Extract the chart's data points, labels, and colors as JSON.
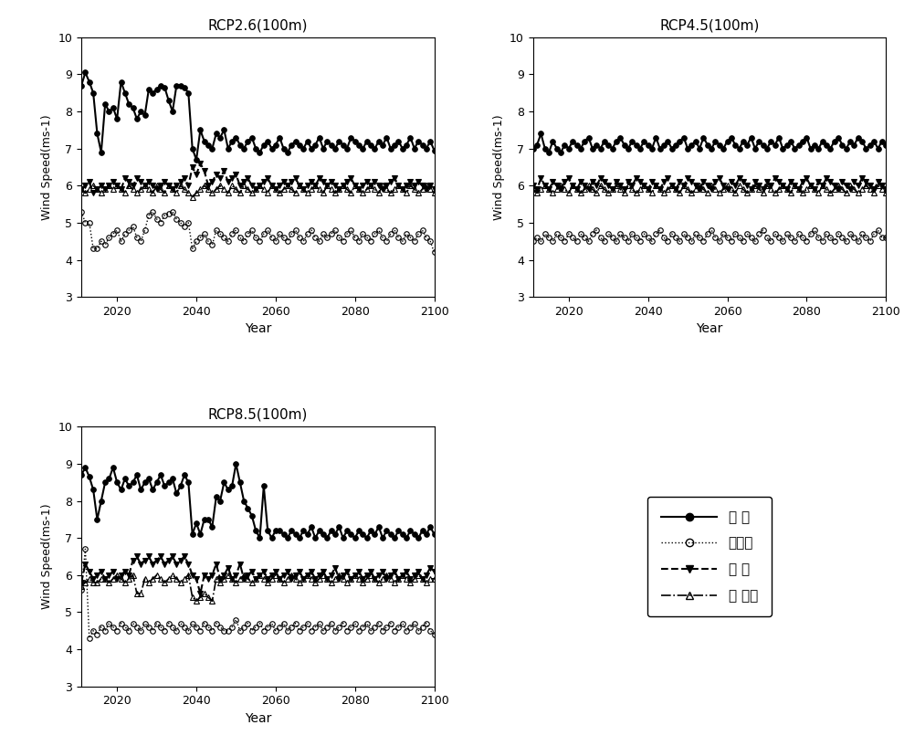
{
  "years": [
    2011,
    2012,
    2013,
    2014,
    2015,
    2016,
    2017,
    2018,
    2019,
    2020,
    2021,
    2022,
    2023,
    2024,
    2025,
    2026,
    2027,
    2028,
    2029,
    2030,
    2031,
    2032,
    2033,
    2034,
    2035,
    2036,
    2037,
    2038,
    2039,
    2040,
    2041,
    2042,
    2043,
    2044,
    2045,
    2046,
    2047,
    2048,
    2049,
    2050,
    2051,
    2052,
    2053,
    2054,
    2055,
    2056,
    2057,
    2058,
    2059,
    2060,
    2061,
    2062,
    2063,
    2064,
    2065,
    2066,
    2067,
    2068,
    2069,
    2070,
    2071,
    2072,
    2073,
    2074,
    2075,
    2076,
    2077,
    2078,
    2079,
    2080,
    2081,
    2082,
    2083,
    2084,
    2085,
    2086,
    2087,
    2088,
    2089,
    2090,
    2091,
    2092,
    2093,
    2094,
    2095,
    2096,
    2097,
    2098,
    2099,
    2100
  ],
  "subplot_titles": [
    "RCP2.6(100m)",
    "RCP4.5(100m)",
    "RCP8.5(100m)"
  ],
  "ylabel": "Wind Speed(ms-1)",
  "xlabel": "Year",
  "ylim": [
    3,
    10
  ],
  "yticks": [
    3,
    4,
    5,
    6,
    7,
    8,
    9,
    10
  ],
  "xticks": [
    2020,
    2040,
    2060,
    2080,
    2100
  ],
  "legend_labels": [
    "한 경",
    "대관령",
    "영 양",
    "서 남해"
  ],
  "series_styles": [
    {
      "color": "#000000",
      "linestyle": "-",
      "marker": "o",
      "markersize": 4,
      "linewidth": 1.5,
      "fillstyle": "full",
      "markerfacecolor": "#000000"
    },
    {
      "color": "#000000",
      "linestyle": ":",
      "marker": "o",
      "markersize": 4,
      "linewidth": 1.0,
      "fillstyle": "none",
      "markerfacecolor": "none"
    },
    {
      "color": "#000000",
      "linestyle": "--",
      "marker": "v",
      "markersize": 4,
      "linewidth": 1.5,
      "fillstyle": "full",
      "markerfacecolor": "#000000"
    },
    {
      "color": "#000000",
      "linestyle": "-.",
      "marker": "^",
      "markersize": 4,
      "linewidth": 1.2,
      "fillstyle": "none",
      "markerfacecolor": "none"
    }
  ],
  "rcp26": {
    "hk": [
      8.7,
      9.05,
      8.8,
      8.5,
      7.4,
      6.9,
      8.2,
      8.0,
      8.1,
      7.8,
      8.8,
      8.5,
      8.2,
      8.1,
      7.8,
      8.0,
      7.9,
      8.6,
      8.5,
      8.6,
      8.7,
      8.65,
      8.3,
      8.0,
      8.7,
      8.7,
      8.65,
      8.5,
      7.0,
      6.7,
      7.5,
      7.2,
      7.1,
      7.0,
      7.4,
      7.3,
      7.5,
      7.0,
      7.2,
      7.3,
      7.1,
      7.0,
      7.2,
      7.3,
      7.0,
      6.9,
      7.1,
      7.2,
      7.0,
      7.1,
      7.3,
      7.0,
      6.9,
      7.1,
      7.2,
      7.1,
      7.0,
      7.2,
      7.0,
      7.1,
      7.3,
      7.0,
      7.2,
      7.1,
      7.0,
      7.2,
      7.1,
      7.0,
      7.3,
      7.2,
      7.1,
      7.0,
      7.2,
      7.1,
      7.0,
      7.2,
      7.1,
      7.3,
      7.0,
      7.1,
      7.2,
      7.0,
      7.1,
      7.3,
      7.0,
      7.2,
      7.1,
      7.0,
      7.2,
      6.95
    ],
    "dg": [
      5.3,
      5.0,
      5.0,
      4.3,
      4.3,
      4.5,
      4.4,
      4.6,
      4.7,
      4.8,
      4.5,
      4.7,
      4.8,
      4.9,
      4.6,
      4.5,
      4.8,
      5.2,
      5.3,
      5.1,
      5.0,
      5.2,
      5.25,
      5.3,
      5.1,
      5.0,
      4.9,
      5.0,
      4.3,
      4.5,
      4.6,
      4.7,
      4.5,
      4.4,
      4.8,
      4.7,
      4.6,
      4.5,
      4.7,
      4.8,
      4.6,
      4.5,
      4.7,
      4.8,
      4.6,
      4.5,
      4.7,
      4.8,
      4.6,
      4.5,
      4.7,
      4.6,
      4.5,
      4.7,
      4.8,
      4.6,
      4.5,
      4.7,
      4.8,
      4.6,
      4.5,
      4.7,
      4.6,
      4.7,
      4.8,
      4.6,
      4.5,
      4.7,
      4.8,
      4.6,
      4.5,
      4.7,
      4.6,
      4.5,
      4.7,
      4.8,
      4.6,
      4.5,
      4.7,
      4.8,
      4.6,
      4.5,
      4.7,
      4.6,
      4.5,
      4.7,
      4.8,
      4.6,
      4.5,
      4.2
    ],
    "yy": [
      5.9,
      6.0,
      6.1,
      5.8,
      5.9,
      6.0,
      5.9,
      6.0,
      6.1,
      6.0,
      5.9,
      6.2,
      6.1,
      6.0,
      6.2,
      6.1,
      6.0,
      6.1,
      6.0,
      5.9,
      6.0,
      6.1,
      6.0,
      5.9,
      6.0,
      6.1,
      6.2,
      6.0,
      6.5,
      6.3,
      6.6,
      6.4,
      6.0,
      6.1,
      6.3,
      6.2,
      6.4,
      6.1,
      6.2,
      6.3,
      6.0,
      6.1,
      6.2,
      6.0,
      5.9,
      6.0,
      6.1,
      6.2,
      6.0,
      5.9,
      6.0,
      6.1,
      6.0,
      6.1,
      6.2,
      6.0,
      5.9,
      6.0,
      6.1,
      6.0,
      6.2,
      6.1,
      6.0,
      6.1,
      6.0,
      5.9,
      6.0,
      6.1,
      6.2,
      6.0,
      5.9,
      6.0,
      6.1,
      6.0,
      6.1,
      6.0,
      5.9,
      6.0,
      6.1,
      6.2,
      6.0,
      5.9,
      6.0,
      6.1,
      6.0,
      6.1,
      6.0,
      5.9,
      6.0,
      5.9
    ],
    "sh": [
      5.9,
      5.8,
      5.9,
      6.0,
      5.9,
      5.8,
      5.9,
      6.0,
      5.9,
      6.0,
      5.9,
      5.8,
      6.0,
      5.9,
      5.8,
      5.9,
      6.0,
      5.9,
      5.8,
      6.0,
      5.9,
      5.8,
      6.0,
      5.9,
      5.8,
      6.0,
      5.9,
      5.8,
      5.7,
      5.8,
      5.9,
      6.0,
      5.9,
      5.8,
      5.9,
      6.0,
      5.9,
      5.8,
      6.0,
      5.9,
      5.8,
      6.0,
      5.9,
      5.8,
      5.9,
      6.0,
      5.9,
      5.8,
      6.0,
      5.9,
      5.8,
      5.9,
      6.0,
      5.9,
      5.8,
      6.0,
      5.9,
      5.8,
      5.9,
      6.0,
      5.9,
      5.8,
      6.0,
      5.9,
      5.8,
      5.9,
      6.0,
      5.9,
      5.8,
      6.0,
      5.9,
      5.8,
      5.9,
      6.0,
      5.9,
      5.8,
      6.0,
      5.9,
      5.8,
      5.9,
      6.0,
      5.9,
      5.8,
      6.0,
      5.9,
      5.8,
      5.9,
      6.0,
      5.9,
      5.8
    ]
  },
  "rcp45": {
    "hk": [
      7.0,
      7.1,
      7.4,
      7.0,
      6.9,
      7.2,
      7.0,
      6.9,
      7.1,
      7.0,
      7.2,
      7.1,
      7.0,
      7.2,
      7.3,
      7.0,
      7.1,
      7.0,
      7.2,
      7.1,
      7.0,
      7.2,
      7.3,
      7.1,
      7.0,
      7.2,
      7.1,
      7.0,
      7.2,
      7.1,
      7.0,
      7.3,
      7.0,
      7.1,
      7.2,
      7.0,
      7.1,
      7.2,
      7.3,
      7.0,
      7.1,
      7.2,
      7.0,
      7.3,
      7.1,
      7.0,
      7.2,
      7.1,
      7.0,
      7.2,
      7.3,
      7.1,
      7.0,
      7.2,
      7.1,
      7.3,
      7.0,
      7.2,
      7.1,
      7.0,
      7.2,
      7.1,
      7.3,
      7.0,
      7.1,
      7.2,
      7.0,
      7.1,
      7.2,
      7.3,
      7.0,
      7.1,
      7.0,
      7.2,
      7.1,
      7.0,
      7.2,
      7.3,
      7.1,
      7.0,
      7.2,
      7.1,
      7.3,
      7.2,
      7.0,
      7.1,
      7.2,
      7.0,
      7.2,
      7.1
    ],
    "dg": [
      4.5,
      4.6,
      4.5,
      4.7,
      4.6,
      4.5,
      4.7,
      4.6,
      4.5,
      4.7,
      4.6,
      4.5,
      4.7,
      4.6,
      4.5,
      4.7,
      4.8,
      4.6,
      4.5,
      4.7,
      4.6,
      4.5,
      4.7,
      4.6,
      4.5,
      4.7,
      4.6,
      4.5,
      4.7,
      4.6,
      4.5,
      4.7,
      4.8,
      4.6,
      4.5,
      4.7,
      4.6,
      4.5,
      4.7,
      4.6,
      4.5,
      4.7,
      4.6,
      4.5,
      4.7,
      4.8,
      4.6,
      4.5,
      4.7,
      4.6,
      4.5,
      4.7,
      4.6,
      4.5,
      4.7,
      4.6,
      4.5,
      4.7,
      4.8,
      4.6,
      4.5,
      4.7,
      4.6,
      4.5,
      4.7,
      4.6,
      4.5,
      4.7,
      4.6,
      4.5,
      4.7,
      4.8,
      4.6,
      4.5,
      4.7,
      4.6,
      4.5,
      4.7,
      4.6,
      4.5,
      4.7,
      4.6,
      4.5,
      4.7,
      4.6,
      4.5,
      4.7,
      4.8,
      4.6,
      4.6
    ],
    "yy": [
      6.0,
      5.9,
      6.2,
      6.0,
      5.9,
      6.1,
      6.0,
      5.9,
      6.1,
      6.2,
      6.0,
      5.9,
      6.1,
      6.0,
      5.9,
      6.1,
      6.0,
      6.2,
      6.1,
      6.0,
      5.9,
      6.1,
      6.0,
      5.9,
      6.1,
      6.0,
      6.2,
      6.1,
      6.0,
      5.9,
      6.1,
      6.0,
      5.9,
      6.1,
      6.2,
      6.0,
      5.9,
      6.1,
      6.0,
      6.2,
      6.1,
      6.0,
      5.9,
      6.1,
      6.0,
      5.9,
      6.1,
      6.2,
      6.0,
      5.9,
      6.1,
      6.0,
      6.2,
      6.1,
      6.0,
      5.9,
      6.1,
      6.0,
      5.9,
      6.1,
      6.0,
      6.2,
      6.1,
      6.0,
      5.9,
      6.1,
      6.0,
      5.9,
      6.1,
      6.2,
      6.0,
      5.9,
      6.1,
      6.0,
      6.2,
      6.1,
      6.0,
      5.9,
      6.1,
      6.0,
      5.9,
      6.1,
      6.0,
      6.2,
      6.1,
      6.0,
      5.9,
      6.1,
      6.0,
      5.9
    ],
    "sh": [
      5.9,
      5.8,
      5.9,
      6.0,
      5.9,
      5.8,
      5.9,
      6.0,
      5.9,
      5.8,
      6.0,
      5.9,
      5.8,
      5.9,
      6.0,
      5.9,
      5.8,
      6.0,
      5.9,
      5.8,
      5.9,
      6.0,
      5.9,
      5.8,
      6.0,
      5.9,
      5.8,
      5.9,
      6.0,
      5.9,
      5.8,
      6.0,
      5.9,
      5.8,
      5.9,
      6.0,
      5.9,
      5.8,
      6.0,
      5.9,
      5.8,
      5.9,
      6.0,
      5.9,
      5.8,
      6.0,
      5.9,
      5.8,
      5.9,
      6.0,
      5.9,
      5.8,
      6.0,
      5.9,
      5.8,
      5.9,
      6.0,
      5.9,
      5.8,
      6.0,
      5.9,
      5.8,
      5.9,
      6.0,
      5.9,
      5.8,
      6.0,
      5.9,
      5.8,
      5.9,
      6.0,
      5.9,
      5.8,
      6.0,
      5.9,
      5.8,
      5.9,
      6.0,
      5.9,
      5.8,
      6.0,
      5.9,
      5.8,
      5.9,
      6.0,
      5.9,
      5.8,
      6.0,
      5.9,
      5.8
    ]
  },
  "rcp85": {
    "hk": [
      8.7,
      8.9,
      8.65,
      8.3,
      7.5,
      8.0,
      8.5,
      8.6,
      8.9,
      8.5,
      8.3,
      8.6,
      8.4,
      8.5,
      8.7,
      8.3,
      8.5,
      8.6,
      8.3,
      8.5,
      8.7,
      8.4,
      8.5,
      8.6,
      8.2,
      8.4,
      8.7,
      8.5,
      7.1,
      7.4,
      7.1,
      7.5,
      7.5,
      7.3,
      8.1,
      8.0,
      8.5,
      8.3,
      8.4,
      9.0,
      8.5,
      8.0,
      7.8,
      7.6,
      7.2,
      7.0,
      8.4,
      7.2,
      7.0,
      7.2,
      7.2,
      7.1,
      7.0,
      7.2,
      7.1,
      7.0,
      7.2,
      7.1,
      7.3,
      7.0,
      7.2,
      7.1,
      7.0,
      7.2,
      7.1,
      7.3,
      7.0,
      7.2,
      7.1,
      7.0,
      7.2,
      7.1,
      7.0,
      7.2,
      7.1,
      7.3,
      7.0,
      7.2,
      7.1,
      7.0,
      7.2,
      7.1,
      7.0,
      7.2,
      7.1,
      7.0,
      7.2,
      7.1,
      7.3,
      7.1
    ],
    "dg": [
      5.6,
      6.7,
      4.3,
      4.5,
      4.4,
      4.6,
      4.5,
      4.7,
      4.6,
      4.5,
      4.7,
      4.6,
      4.5,
      4.7,
      4.6,
      4.5,
      4.7,
      4.6,
      4.5,
      4.7,
      4.6,
      4.5,
      4.7,
      4.6,
      4.5,
      4.7,
      4.6,
      4.5,
      4.7,
      4.6,
      4.5,
      4.7,
      4.6,
      4.5,
      4.7,
      4.6,
      4.5,
      4.5,
      4.6,
      4.8,
      4.5,
      4.6,
      4.7,
      4.5,
      4.6,
      4.7,
      4.5,
      4.6,
      4.7,
      4.5,
      4.6,
      4.7,
      4.5,
      4.6,
      4.7,
      4.5,
      4.6,
      4.7,
      4.5,
      4.6,
      4.7,
      4.5,
      4.6,
      4.7,
      4.5,
      4.6,
      4.7,
      4.5,
      4.6,
      4.7,
      4.5,
      4.6,
      4.7,
      4.5,
      4.6,
      4.7,
      4.5,
      4.6,
      4.7,
      4.5,
      4.6,
      4.7,
      4.5,
      4.6,
      4.7,
      4.5,
      4.6,
      4.7,
      4.5,
      4.4
    ],
    "yy": [
      5.8,
      6.3,
      6.1,
      5.9,
      6.0,
      6.1,
      5.9,
      6.0,
      6.1,
      5.9,
      6.0,
      6.1,
      6.0,
      6.4,
      6.5,
      6.3,
      6.4,
      6.5,
      6.3,
      6.4,
      6.5,
      6.3,
      6.4,
      6.5,
      6.3,
      6.4,
      6.5,
      6.3,
      6.0,
      5.9,
      5.5,
      6.0,
      5.9,
      6.0,
      6.3,
      5.9,
      6.0,
      6.2,
      5.9,
      6.0,
      6.3,
      5.9,
      6.0,
      6.1,
      5.9,
      6.0,
      6.1,
      5.9,
      6.0,
      6.1,
      5.9,
      6.0,
      6.1,
      5.9,
      6.0,
      6.1,
      5.9,
      6.0,
      6.1,
      5.9,
      6.0,
      6.1,
      5.9,
      6.0,
      6.2,
      5.9,
      6.0,
      6.1,
      5.9,
      6.0,
      6.1,
      5.9,
      6.0,
      6.1,
      5.9,
      6.0,
      6.1,
      5.9,
      6.0,
      6.1,
      5.9,
      6.0,
      6.1,
      5.9,
      6.0,
      6.1,
      5.9,
      6.0,
      6.2,
      6.1
    ],
    "sh": [
      5.7,
      5.8,
      5.9,
      5.8,
      5.8,
      5.9,
      5.9,
      5.8,
      5.9,
      6.0,
      5.9,
      5.8,
      5.9,
      6.0,
      5.5,
      5.5,
      5.9,
      5.8,
      5.9,
      6.0,
      5.9,
      5.8,
      5.9,
      6.0,
      5.9,
      5.8,
      5.9,
      6.0,
      5.4,
      5.3,
      5.4,
      5.5,
      5.4,
      5.3,
      5.9,
      5.8,
      5.9,
      6.0,
      5.9,
      5.8,
      5.9,
      6.0,
      5.9,
      5.8,
      5.9,
      6.0,
      5.9,
      5.8,
      5.9,
      6.0,
      5.9,
      5.8,
      5.9,
      6.0,
      5.9,
      5.8,
      5.9,
      6.0,
      5.9,
      5.8,
      5.9,
      6.0,
      5.9,
      5.8,
      5.9,
      6.0,
      5.9,
      5.8,
      5.9,
      6.0,
      5.9,
      5.8,
      5.9,
      6.0,
      5.9,
      5.8,
      5.9,
      6.0,
      5.9,
      5.8,
      5.9,
      6.0,
      5.9,
      5.8,
      5.9,
      6.0,
      5.9,
      5.8,
      5.9,
      5.9
    ]
  },
  "background_color": "#ffffff",
  "figure_size": [
    9.9,
    8.17
  ]
}
